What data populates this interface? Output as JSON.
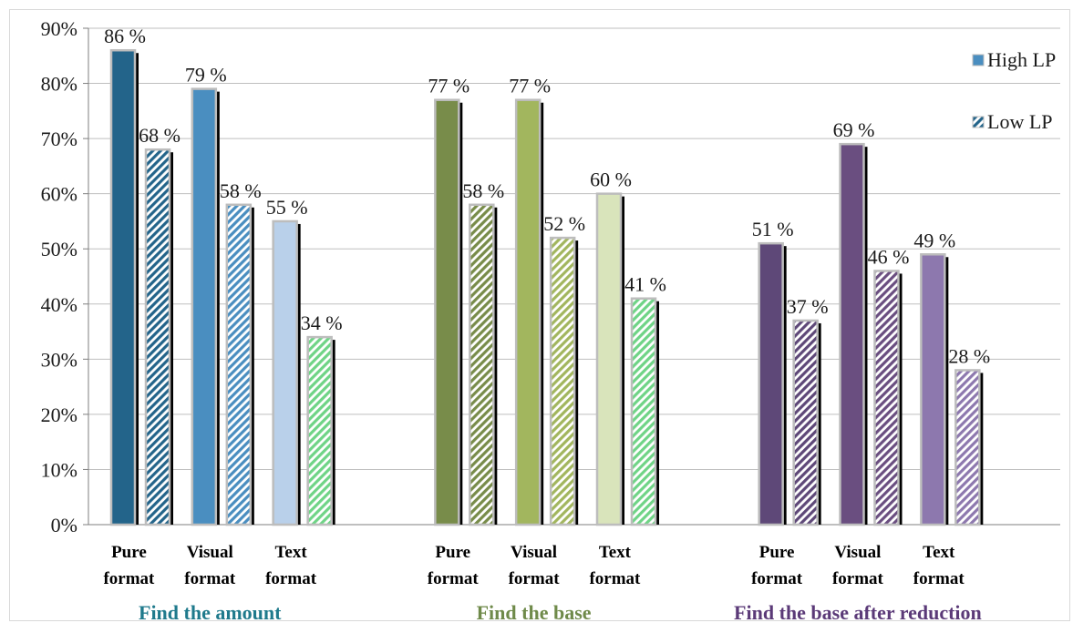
{
  "chart_data": {
    "type": "bar",
    "ylim": [
      0,
      90
    ],
    "yticks": [
      "0%",
      "10%",
      "20%",
      "30%",
      "40%",
      "50%",
      "60%",
      "70%",
      "80%",
      "90%"
    ],
    "grid": true,
    "legend_position": "top-right",
    "legend": [
      {
        "name": "High LP",
        "pattern": "solid"
      },
      {
        "name": "Low LP",
        "pattern": "hatched"
      }
    ],
    "groups": [
      {
        "name": "Find the amount",
        "color": "#1f7a8c",
        "categories": [
          {
            "label": [
              "Pure",
              "format"
            ],
            "high": 86,
            "low": 68,
            "high_label": "86 %",
            "low_label": "68 %",
            "color": "#23648a"
          },
          {
            "label": [
              "Visual",
              "format"
            ],
            "high": 79,
            "low": 58,
            "high_label": "79 %",
            "low_label": "58 %",
            "color": "#4a8ec0"
          },
          {
            "label": [
              "Text",
              "format"
            ],
            "high": 55,
            "low": 34,
            "high_label": "55 %",
            "low_label": "34 %",
            "color": "#b9d0ea",
            "low_color": "#6fd486"
          }
        ]
      },
      {
        "name": "Find the base",
        "color": "#6f8a4a",
        "categories": [
          {
            "label": [
              "Pure",
              "format"
            ],
            "high": 77,
            "low": 58,
            "high_label": "77 %",
            "low_label": "58 %",
            "color": "#788c4a"
          },
          {
            "label": [
              "Visual",
              "format"
            ],
            "high": 77,
            "low": 52,
            "high_label": "77 %",
            "low_label": "52 %",
            "color": "#a2b65e"
          },
          {
            "label": [
              "Text",
              "format"
            ],
            "high": 60,
            "low": 41,
            "high_label": "60 %",
            "low_label": "41 %",
            "color": "#d9e4bb",
            "low_color": "#6fd486"
          }
        ]
      },
      {
        "name": "Find the base after reduction",
        "color": "#5b3a78",
        "categories": [
          {
            "label": [
              "Pure",
              "format"
            ],
            "high": 51,
            "low": 37,
            "high_label": "51 %",
            "low_label": "37 %",
            "color": "#5e4878"
          },
          {
            "label": [
              "Visual",
              "format"
            ],
            "high": 69,
            "low": 46,
            "high_label": "69 %",
            "low_label": "46 %",
            "color": "#6a4e80"
          },
          {
            "label": [
              "Text",
              "format"
            ],
            "high": 49,
            "low": 28,
            "high_label": "49 %",
            "low_label": "28 %",
            "color": "#8d78ae"
          }
        ]
      }
    ]
  }
}
